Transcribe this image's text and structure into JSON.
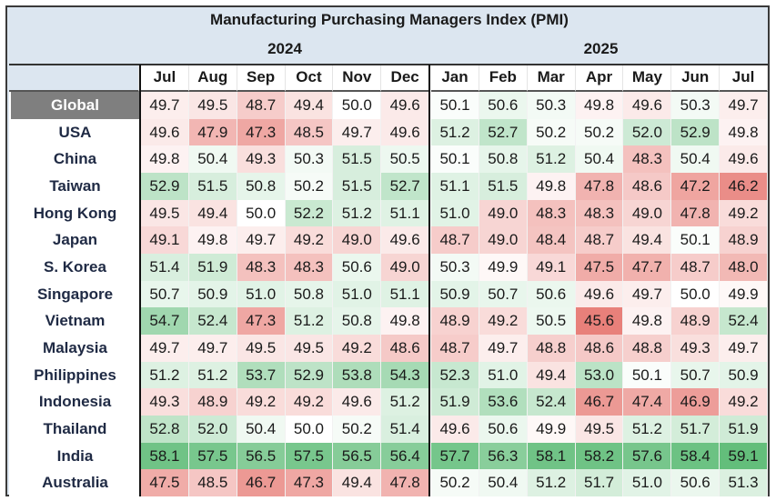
{
  "chart_data": {
    "type": "heatmap",
    "title": "Manufacturing Purchasing Managers Index (PMI)",
    "year_groups": [
      {
        "label": "2024",
        "months": [
          "Jul",
          "Aug",
          "Sep",
          "Oct",
          "Nov",
          "Dec"
        ]
      },
      {
        "label": "2025",
        "months": [
          "Jan",
          "Feb",
          "Mar",
          "Apr",
          "May",
          "Jun",
          "Jul"
        ]
      }
    ],
    "columns": [
      "Jul",
      "Aug",
      "Sep",
      "Oct",
      "Nov",
      "Dec",
      "Jan",
      "Feb",
      "Mar",
      "Apr",
      "May",
      "Jun",
      "Jul"
    ],
    "rows": [
      {
        "label": "Global",
        "values": [
          49.7,
          49.5,
          48.7,
          49.4,
          50.0,
          49.6,
          50.1,
          50.6,
          50.3,
          49.8,
          49.6,
          50.3,
          49.7
        ]
      },
      {
        "label": "USA",
        "values": [
          49.6,
          47.9,
          47.3,
          48.5,
          49.7,
          49.6,
          51.2,
          52.7,
          50.2,
          50.2,
          52.0,
          52.9,
          49.8
        ]
      },
      {
        "label": "China",
        "values": [
          49.8,
          50.4,
          49.3,
          50.3,
          51.5,
          50.5,
          50.1,
          50.8,
          51.2,
          50.4,
          48.3,
          50.4,
          49.6
        ]
      },
      {
        "label": "Taiwan",
        "values": [
          52.9,
          51.5,
          50.8,
          50.2,
          51.5,
          52.7,
          51.1,
          51.5,
          49.8,
          47.8,
          48.6,
          47.2,
          46.2
        ]
      },
      {
        "label": "Hong Kong",
        "values": [
          49.5,
          49.4,
          50.0,
          52.2,
          51.2,
          51.1,
          51.0,
          49.0,
          48.3,
          48.3,
          49.0,
          47.8,
          49.2
        ]
      },
      {
        "label": "Japan",
        "values": [
          49.1,
          49.8,
          49.7,
          49.2,
          49.0,
          49.6,
          48.7,
          49.0,
          48.4,
          48.7,
          49.4,
          50.1,
          48.9
        ]
      },
      {
        "label": "S. Korea",
        "values": [
          51.4,
          51.9,
          48.3,
          48.3,
          50.6,
          49.0,
          50.3,
          49.9,
          49.1,
          47.5,
          47.7,
          48.7,
          48.0
        ]
      },
      {
        "label": "Singapore",
        "values": [
          50.7,
          50.9,
          51.0,
          50.8,
          51.0,
          51.1,
          50.9,
          50.7,
          50.6,
          49.6,
          49.7,
          50.0,
          49.9
        ]
      },
      {
        "label": "Vietnam",
        "values": [
          54.7,
          52.4,
          47.3,
          51.2,
          50.8,
          49.8,
          48.9,
          49.2,
          50.5,
          45.6,
          49.8,
          48.9,
          52.4
        ]
      },
      {
        "label": "Malaysia",
        "values": [
          49.7,
          49.7,
          49.5,
          49.5,
          49.2,
          48.6,
          48.7,
          49.7,
          48.8,
          48.6,
          48.8,
          49.3,
          49.7
        ]
      },
      {
        "label": "Philippines",
        "values": [
          51.2,
          51.2,
          53.7,
          52.9,
          53.8,
          54.3,
          52.3,
          51.0,
          49.4,
          53.0,
          50.1,
          50.7,
          50.9
        ]
      },
      {
        "label": "Indonesia",
        "values": [
          49.3,
          48.9,
          49.2,
          49.2,
          49.6,
          51.2,
          51.9,
          53.6,
          52.4,
          46.7,
          47.4,
          46.9,
          49.2
        ]
      },
      {
        "label": "Thailand",
        "values": [
          52.8,
          52.0,
          50.4,
          50.0,
          50.2,
          51.4,
          49.6,
          50.6,
          49.9,
          49.5,
          51.2,
          51.7,
          51.9
        ]
      },
      {
        "label": "India",
        "values": [
          58.1,
          57.5,
          56.5,
          57.5,
          56.5,
          56.4,
          57.7,
          56.3,
          58.1,
          58.2,
          57.6,
          58.4,
          59.1
        ]
      },
      {
        "label": "Australia",
        "values": [
          47.5,
          48.5,
          46.7,
          47.3,
          49.4,
          47.8,
          50.2,
          50.4,
          51.2,
          51.7,
          51.0,
          50.6,
          51.3
        ]
      }
    ],
    "color_scale": {
      "low": "#e8807a",
      "mid": "#ffffff",
      "high": "#63be7b",
      "midpoint": 50.0
    }
  }
}
